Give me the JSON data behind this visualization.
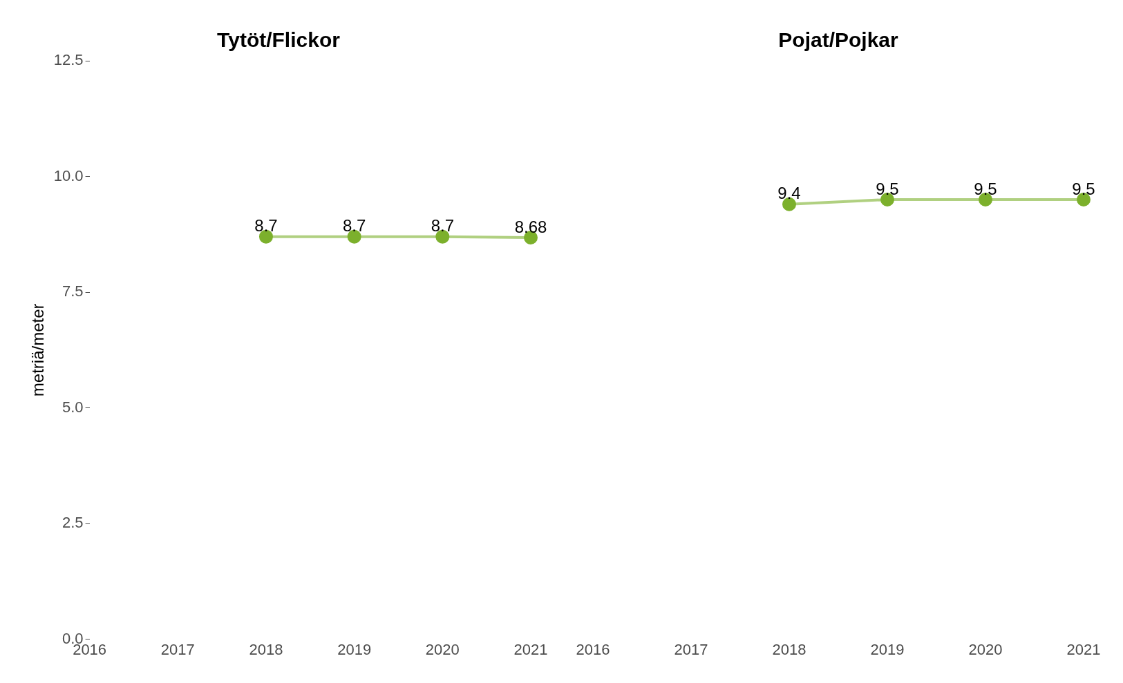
{
  "chart_data": [
    {
      "type": "line",
      "title": "Tytöt/Flickor",
      "ylabel": "metriä/meter",
      "x": [
        2018,
        2019,
        2020,
        2021
      ],
      "series": [
        {
          "color": "#7cb02c",
          "values": [
            8.7,
            8.7,
            8.7,
            8.68
          ]
        }
      ],
      "xlim": [
        2016,
        2021
      ],
      "xticks": [
        2016,
        2017,
        2018,
        2019,
        2020,
        2021
      ],
      "ylim": [
        0,
        12.5
      ],
      "yticks": [
        {
          "value": 0,
          "label": "0.0"
        },
        2.5,
        {
          "value": 5,
          "label": "5.0"
        },
        7.5,
        {
          "value": 10,
          "label": "10.0"
        },
        12.5
      ],
      "marker": "circle",
      "grid": false,
      "legend": false,
      "data_labels": true
    },
    {
      "type": "line",
      "title": "Pojat/Pojkar",
      "x": [
        2018,
        2019,
        2020,
        2021
      ],
      "series": [
        {
          "color": "#7cb02c",
          "values": [
            9.4,
            9.5,
            9.5,
            9.5
          ]
        }
      ],
      "xlim": [
        2016,
        2021
      ],
      "xticks": [
        2016,
        2017,
        2018,
        2019,
        2020,
        2021
      ],
      "ylim": [
        0,
        12.5
      ],
      "yticks": [
        0,
        2.5,
        5,
        7.5,
        10,
        12.5
      ],
      "marker": "circle",
      "grid": false,
      "legend": false,
      "data_labels": true,
      "tick_labels": "x"
    }
  ]
}
